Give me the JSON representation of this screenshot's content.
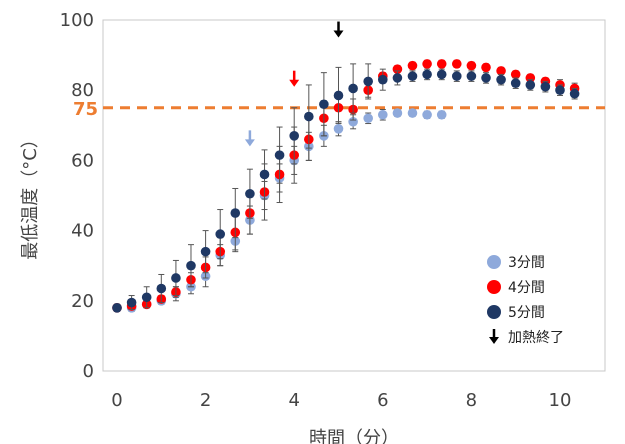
{
  "chart_data": {
    "type": "scatter",
    "xlabel": "時間（分）",
    "ylabel": "最低温度（°C）",
    "xlim": [
      0,
      11
    ],
    "ylim": [
      0,
      100
    ],
    "xticks": [
      0,
      2,
      4,
      6,
      8,
      10
    ],
    "yticks": [
      0,
      20,
      40,
      60,
      80,
      100
    ],
    "tick_labels": {
      "x": [
        "0",
        "2",
        "4",
        "6",
        "8",
        "10"
      ],
      "y": [
        "0",
        "20",
        "40",
        "60",
        "80",
        "100"
      ]
    },
    "reference_line": {
      "y": 75,
      "label": "75",
      "color": "#ED7D31",
      "style": "dashed"
    },
    "series": [
      {
        "name": "3分間",
        "color": "#8EA9DB",
        "x": [
          0,
          0.33,
          0.67,
          1,
          1.33,
          1.67,
          2,
          2.33,
          2.67,
          3,
          3.33,
          3.67,
          4,
          4.33,
          4.67,
          5,
          5.33,
          5.67,
          6,
          6.33,
          6.67,
          7,
          7.33
        ],
        "y": [
          18,
          18,
          19,
          20,
          22,
          24,
          27,
          33,
          37,
          43,
          50,
          55,
          60,
          64,
          67,
          69,
          71,
          72,
          73,
          73.5,
          73.5,
          73,
          73
        ],
        "err": [
          1,
          1,
          1,
          1,
          2,
          2,
          3,
          3,
          3,
          4,
          4,
          4,
          4,
          4,
          3,
          2,
          2,
          1.5,
          1.5,
          1,
          1,
          1,
          1
        ]
      },
      {
        "name": "4分間",
        "color": "#FF0000",
        "x": [
          0,
          0.33,
          0.67,
          1,
          1.33,
          1.67,
          2,
          2.33,
          2.67,
          3,
          3.33,
          3.67,
          4,
          4.33,
          4.67,
          5,
          5.33,
          5.67,
          6,
          6.33,
          6.67,
          7,
          7.33,
          7.67,
          8,
          8.33,
          8.67,
          9,
          9.33,
          9.67,
          10,
          10.33
        ],
        "y": [
          18,
          18.5,
          19,
          20.5,
          22.5,
          26,
          29.5,
          34,
          39.5,
          45,
          51,
          56,
          61.5,
          66,
          72,
          75,
          74.5,
          80,
          84,
          86,
          87,
          87.5,
          87.5,
          87.5,
          87,
          86.5,
          85.5,
          84.5,
          83.5,
          82.5,
          81.5,
          80.5
        ],
        "err": [
          1,
          1,
          1,
          1,
          1.5,
          2,
          3,
          4,
          5,
          6,
          8,
          8,
          8,
          6,
          5,
          4,
          3,
          2,
          1,
          1,
          1,
          1,
          1,
          1,
          1,
          1,
          1,
          1,
          1,
          1,
          1.5,
          1.5
        ]
      },
      {
        "name": "5分間",
        "color": "#1F3864",
        "x": [
          0,
          0.33,
          0.67,
          1,
          1.33,
          1.67,
          2,
          2.33,
          2.67,
          3,
          3.33,
          3.67,
          4,
          4.33,
          4.67,
          5,
          5.33,
          5.67,
          6,
          6.33,
          6.67,
          7,
          7.33,
          7.67,
          8,
          8.33,
          8.67,
          9,
          9.33,
          9.67,
          10,
          10.33
        ],
        "y": [
          18,
          19.5,
          21,
          23.5,
          26.5,
          30,
          34,
          39,
          45,
          50.5,
          56,
          61.5,
          67,
          72.5,
          76,
          78.5,
          80.5,
          82.5,
          83,
          83.5,
          84,
          84.5,
          84.5,
          84,
          84,
          83.5,
          83,
          82,
          81.5,
          81,
          80,
          79
        ],
        "err": [
          1,
          2,
          3,
          4,
          5,
          6,
          6,
          7,
          7,
          7,
          7,
          8,
          8,
          9,
          9,
          8,
          7,
          5,
          3,
          2,
          1.5,
          1.5,
          1.5,
          1.5,
          1.5,
          1.5,
          1.5,
          1.5,
          1.5,
          1.5,
          1.5,
          1.5
        ]
      }
    ],
    "markers": [
      {
        "x": 3,
        "y": 64,
        "color": "#8EA9DB",
        "series": "3分間"
      },
      {
        "x": 4,
        "y": 81,
        "color": "#FF0000",
        "series": "4分間"
      },
      {
        "x": 5,
        "y": 95,
        "color": "#000000",
        "series": "5分間"
      }
    ],
    "legend": {
      "position": "right",
      "items": [
        {
          "label": "3分間",
          "color": "#8EA9DB",
          "symbol": "circle"
        },
        {
          "label": "4分間",
          "color": "#FF0000",
          "symbol": "circle"
        },
        {
          "label": "5分間",
          "color": "#1F3864",
          "symbol": "circle"
        },
        {
          "label": "加熱終了",
          "color": "#000000",
          "symbol": "arrow"
        }
      ]
    }
  }
}
